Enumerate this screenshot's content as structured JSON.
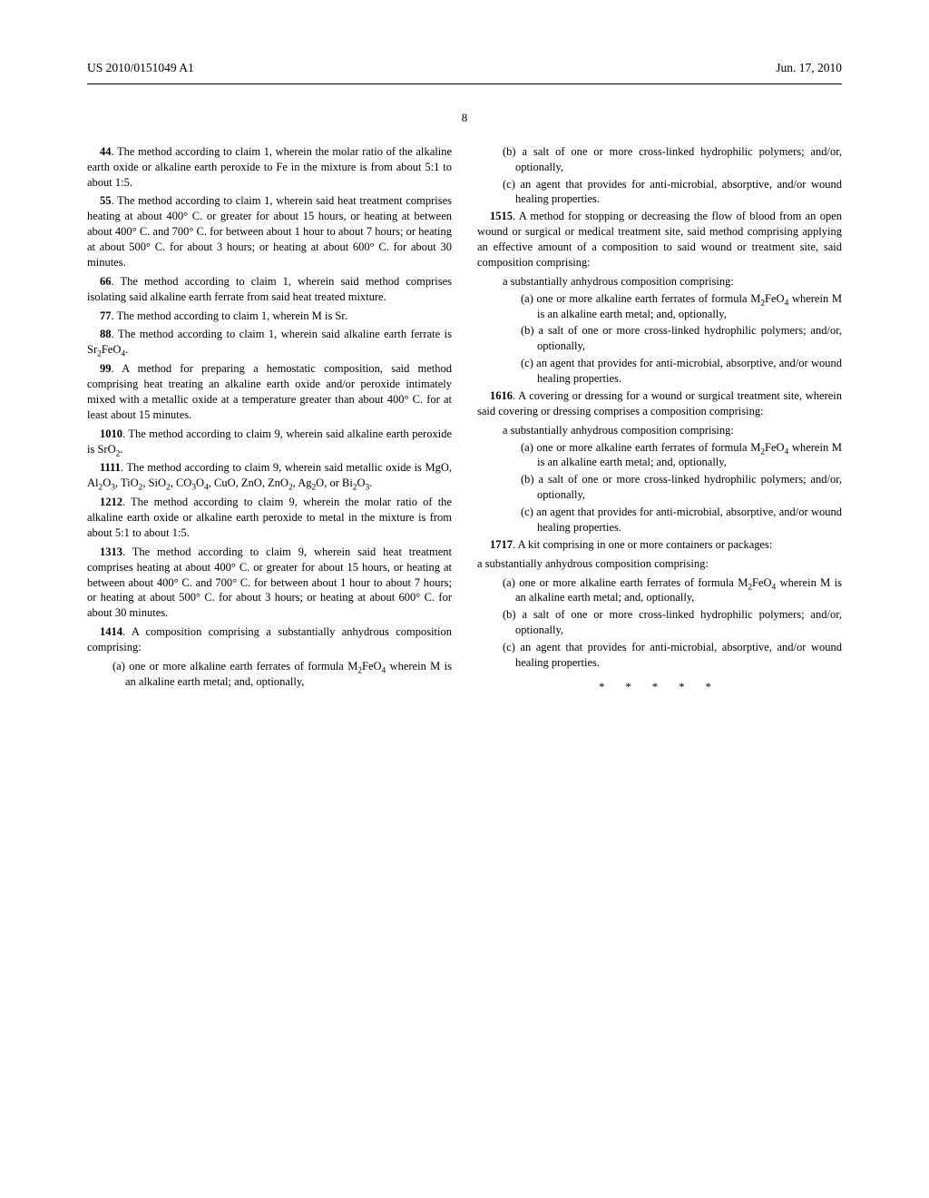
{
  "header": {
    "left": "US 2010/0151049 A1",
    "right": "Jun. 17, 2010"
  },
  "pagenum": "8",
  "claims": {
    "c4": "4. The method according to claim 1, wherein the molar ratio of the alkaline earth oxide or alkaline earth peroxide to Fe in the mixture is from about 5:1 to about 1:5.",
    "c5": "5. The method according to claim 1, wherein said heat treatment comprises heating at about 400° C. or greater for about 15 hours, or heating at between about 400° C. and 700° C. for between about 1 hour to about 7 hours; or heating at about 500° C. for about 3 hours; or heating at about 600° C. for about 30 minutes.",
    "c6": "6. The method according to claim 1, wherein said method comprises isolating said alkaline earth ferrate from said heat treated mixture.",
    "c7": "7. The method according to claim 1, wherein M is Sr.",
    "c8a": "8. The method according to claim 1, wherein said alkaline earth ferrate is Sr",
    "c8b": "FeO",
    "c8c": ".",
    "c9": "9. A method for preparing a hemostatic composition, said method comprising heat treating an alkaline earth oxide and/or peroxide intimately mixed with a metallic oxide at a temperature greater than about 400° C. for at least about 15 minutes.",
    "c10a": "10. The method according to claim 9, wherein said alkaline earth peroxide is SrO",
    "c10b": ".",
    "c11a": "11. The method according to claim 9, wherein said metallic oxide is MgO, Al",
    "c11b": "O",
    "c11c": ", TiO",
    "c11d": ", SiO",
    "c11e": ", CO",
    "c11f": "O",
    "c11g": ", CuO, ZnO, ZnO",
    "c11h": ", Ag",
    "c11i": "O, or Bi",
    "c11j": "O",
    "c11k": ".",
    "c12": "12. The method according to claim 9, wherein the molar ratio of the alkaline earth oxide or alkaline earth peroxide to metal in the mixture is from about 5:1 to about 1:5.",
    "c13": "13. The method according to claim 9, wherein said heat treatment comprises heating at about 400° C. or greater for about 15 hours, or heating at between about 400° C. and 700° C. for between about 1 hour to about 7 hours; or heating at about 500° C. for about 3 hours; or heating at about 600° C. for about 30 minutes.",
    "c14": "14. A composition comprising a substantially anhydrous composition comprising:",
    "c14a_pre": "(a) one or more alkaline earth ferrates of formula M",
    "c14a_mid": "FeO",
    "c14a_post": " wherein M is an alkaline earth metal; and, optionally,",
    "c14b": "(b) a salt of one or more cross-linked hydrophilic polymers; and/or, optionally,",
    "c14c": "(c) an agent that provides for anti-microbial, absorptive, and/or wound healing properties.",
    "c15": "15. A method for stopping or decreasing the flow of blood from an open wound or surgical or medical treatment site, said method comprising applying an effective amount of a composition to said wound or treatment site, said composition comprising:",
    "c15s": "a substantially anhydrous composition comprising:",
    "c15a_pre": "(a) one or more alkaline earth ferrates of formula M",
    "c15a_mid": "FeO",
    "c15a_post": " wherein M is an alkaline earth metal; and, optionally,",
    "c15b": "(b) a salt of one or more cross-linked hydrophilic polymers; and/or, optionally,",
    "c15c": "(c) an agent that provides for anti-microbial, absorptive, and/or wound healing properties.",
    "c16": "16. A covering or dressing for a wound or surgical treatment site, wherein said covering or dressing comprises a composition comprising:",
    "c16s": "a substantially anhydrous composition comprising:",
    "c16a_pre": "(a) one or more alkaline earth ferrates of formula M",
    "c16a_mid": "FeO",
    "c16a_post": " wherein M is an alkaline earth metal; and, optionally,",
    "c16b": "(b) a salt of one or more cross-linked hydrophilic polymers; and/or, optionally,",
    "c16c": "(c) an agent that provides for anti-microbial, absorptive, and/or wound healing properties.",
    "c17": "17. A kit comprising in one or more containers or packages:",
    "c17s": "a substantially anhydrous composition comprising:",
    "c17a_pre": "(a) one or more alkaline earth ferrates of formula M",
    "c17a_mid": "FeO",
    "c17a_post": " wherein M is an alkaline earth metal; and, optionally,",
    "c17b": "(b) a salt of one or more cross-linked hydrophilic polymers; and/or, optionally,",
    "c17c": "(c) an agent that provides for anti-microbial, absorptive, and/or wound healing properties."
  },
  "stars": "* * * * *"
}
